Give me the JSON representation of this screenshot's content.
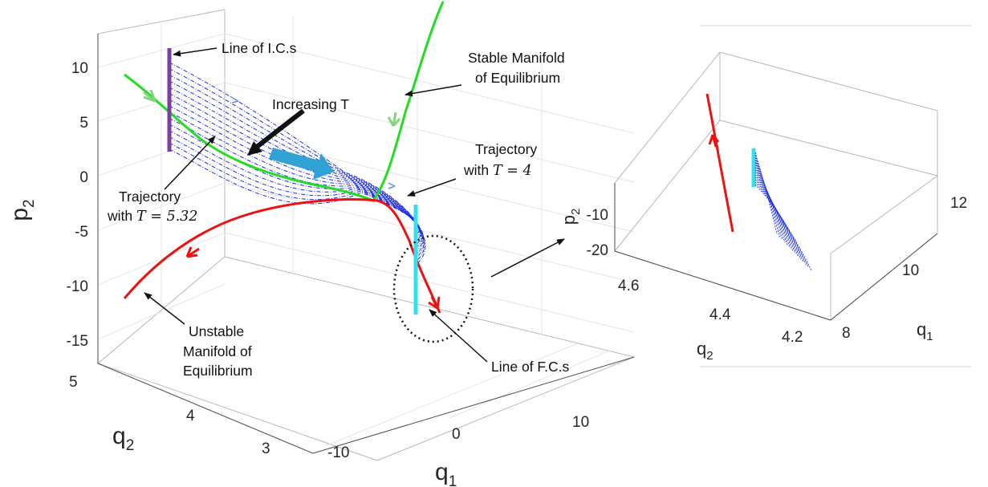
{
  "chart_data": [
    {
      "type": "line",
      "view": "3d",
      "title": "",
      "xlabel": "q",
      "xlabel_sub": "1",
      "ylabel": "q",
      "ylabel_sub": "2",
      "zlabel": "p",
      "zlabel_sub": "2",
      "xlim": [
        -15,
        15
      ],
      "ylim": [
        3,
        5
      ],
      "zlim": [
        -17,
        13
      ],
      "x_ticks": [
        "-10",
        "0",
        "10"
      ],
      "y_ticks": [
        "5",
        "4",
        "3"
      ],
      "z_ticks": [
        "10",
        "5",
        "0",
        "-5",
        "-10",
        "-15"
      ],
      "grid": true,
      "series": [
        {
          "id": "stable-manifold",
          "color": "#22dd22",
          "points": [
            [
              -15,
              4.9,
              9
            ],
            [
              -12,
              4.8,
              5
            ],
            [
              -6,
              4.5,
              1.5
            ],
            [
              -1,
              4.3,
              -1.8
            ],
            [
              1,
              4.3,
              -2
            ],
            [
              4,
              4.2,
              8
            ],
            [
              6,
              4.0,
              13
            ]
          ]
        },
        {
          "id": "unstable-manifold",
          "color": "#ee1111",
          "points": [
            [
              -15,
              3.0,
              -11
            ],
            [
              -11,
              3.4,
              -7
            ],
            [
              -5,
              3.9,
              -3
            ],
            [
              0,
              4.2,
              -2
            ],
            [
              2,
              4.2,
              -5
            ],
            [
              4,
              4.2,
              -12
            ]
          ]
        },
        {
          "id": "ic-line",
          "color": "#7b3fa0",
          "points": [
            [
              -12,
              4.8,
              11.5
            ],
            [
              -12,
              4.8,
              2
            ]
          ]
        },
        {
          "id": "fc-line",
          "color": "#33e0f0",
          "points": [
            [
              3,
              4.2,
              -3
            ],
            [
              3,
              4.2,
              -12
            ]
          ]
        }
      ],
      "trajectory_family_color": "#1e2ee0",
      "annotations": [
        {
          "id": "ic",
          "text": "Line of I.C.s"
        },
        {
          "id": "stable",
          "lines": [
            "Stable Manifold",
            "of Equilibrium"
          ]
        },
        {
          "id": "increasing",
          "text": "Increasing T"
        },
        {
          "id": "traj4",
          "line1": "Trajectory",
          "line2_prefix": "with ",
          "line2_var": "T",
          "line2_suffix": " = 4"
        },
        {
          "id": "traj532",
          "line1": "Trajectory",
          "line2_prefix": "with ",
          "line2_var": "T",
          "line2_suffix": " = 5.32"
        },
        {
          "id": "unstable",
          "lines": [
            "Unstable",
            "Manifold of",
            "Equilibrium"
          ]
        },
        {
          "id": "fc",
          "text": "Line of F.C.s"
        }
      ],
      "legend": "none"
    },
    {
      "type": "line",
      "view": "3d-inset",
      "title": "",
      "xlabel": "q",
      "xlabel_sub": "1",
      "ylabel": "q",
      "ylabel_sub": "2",
      "zlabel": "p",
      "zlabel_sub": "2",
      "x_ticks": [
        "12",
        "10",
        "8"
      ],
      "y_ticks": [
        "4.6",
        "4.4",
        "4.2"
      ],
      "z_ticks": [
        "-10",
        "-20"
      ],
      "grid": false,
      "series": [
        {
          "id": "unstable-manifold-zoom",
          "color": "#ee1111"
        },
        {
          "id": "fc-line-zoom",
          "color": "#33e0f0"
        },
        {
          "id": "trajectory-fan-zoom",
          "color": "#1e2ee0"
        }
      ]
    }
  ]
}
